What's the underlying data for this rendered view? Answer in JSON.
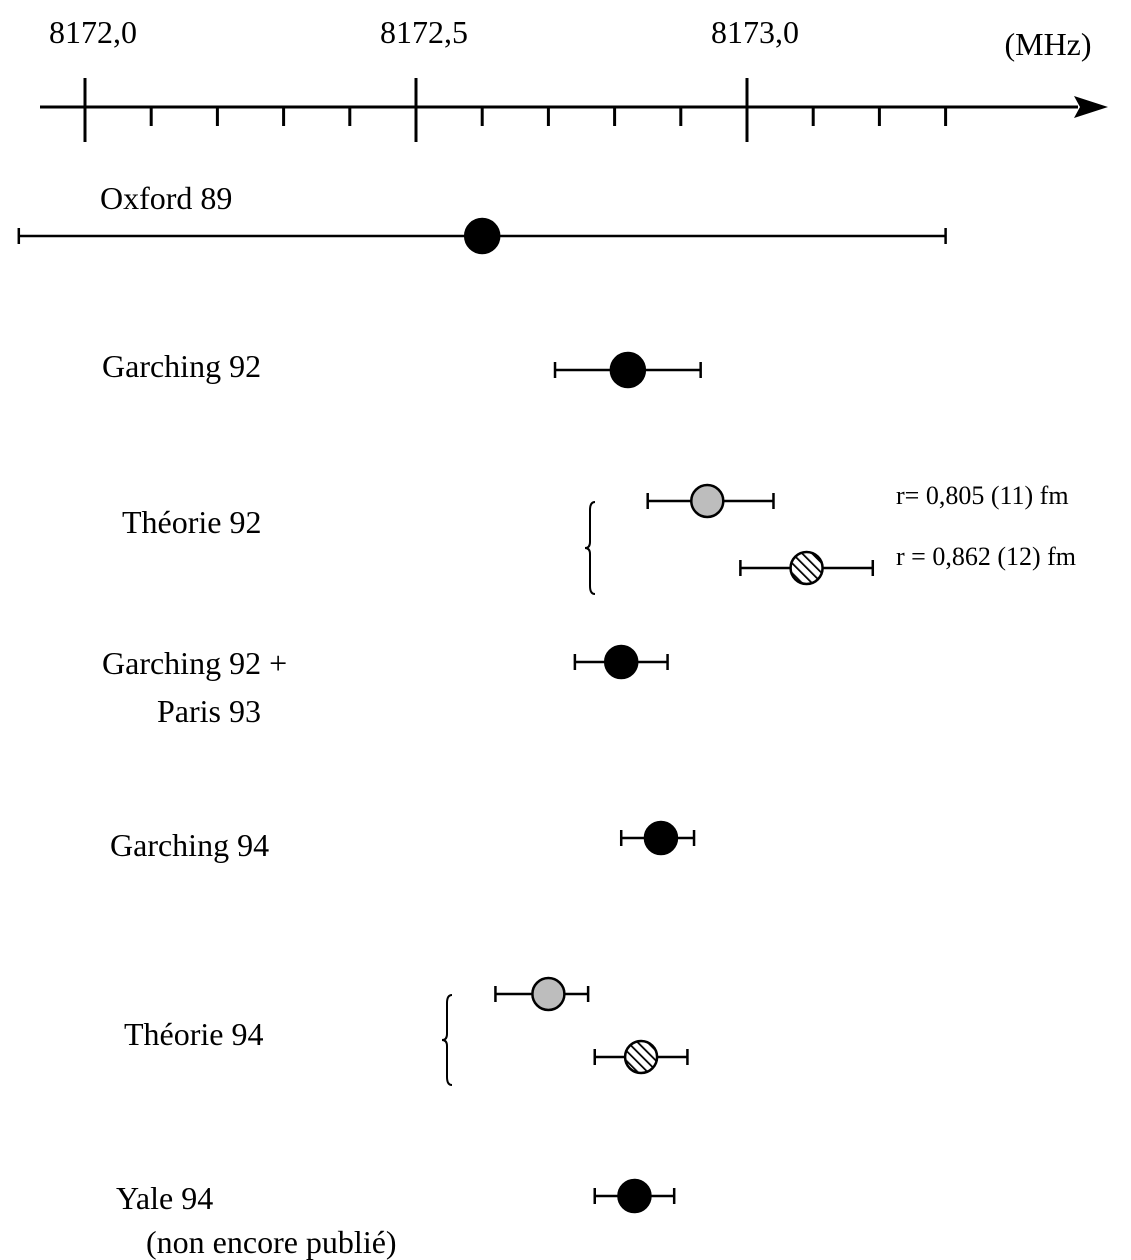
{
  "chart_data": {
    "type": "scatter",
    "title": "",
    "xlabel": "",
    "ylabel": "",
    "unit": "(MHz)",
    "xlim": [
      8171.9,
      8173.5
    ],
    "x_tick_labels": [
      "8172,0",
      "8172,5",
      "8173,0"
    ],
    "x_major_ticks": [
      8172.0,
      8172.5,
      8173.0
    ],
    "x_minor_ticks": [
      8172.1,
      8172.2,
      8172.3,
      8172.4,
      8172.6,
      8172.7,
      8172.8,
      8172.9,
      8173.1,
      8173.2,
      8173.3
    ],
    "legend": "none",
    "grid": false,
    "marker_fills": {
      "measurement": "#000000",
      "theory_a": "#bdbdbd",
      "theory_b": "hatched"
    },
    "rows": [
      {
        "label": [
          "Oxford 89"
        ],
        "points": [
          {
            "x": 8172.6,
            "xmin": 8171.9,
            "xmax": 8173.3,
            "marker": "measurement",
            "size": "large"
          }
        ]
      },
      {
        "label": [
          "Garching 92"
        ],
        "points": [
          {
            "x": 8172.82,
            "xmin": 8172.71,
            "xmax": 8172.93,
            "marker": "measurement",
            "size": "large"
          }
        ]
      },
      {
        "label": [
          "Théorie 92"
        ],
        "group": true,
        "points": [
          {
            "x": 8172.94,
            "xmin": 8172.85,
            "xmax": 8173.04,
            "marker": "theory_a",
            "size": "medium",
            "note": "r= 0,805 (11) fm"
          },
          {
            "x": 8173.09,
            "xmin": 8172.99,
            "xmax": 8173.19,
            "marker": "theory_b",
            "size": "medium",
            "note": "r = 0,862 (12) fm"
          }
        ]
      },
      {
        "label": [
          "Garching 92 +",
          "Paris 93"
        ],
        "points": [
          {
            "x": 8172.81,
            "xmin": 8172.74,
            "xmax": 8172.88,
            "marker": "measurement",
            "size": "medium"
          }
        ]
      },
      {
        "label": [
          "Garching 94"
        ],
        "points": [
          {
            "x": 8172.87,
            "xmin": 8172.81,
            "xmax": 8172.92,
            "marker": "measurement",
            "size": "medium"
          }
        ]
      },
      {
        "label": [
          "Théorie 94"
        ],
        "group": true,
        "points": [
          {
            "x": 8172.7,
            "xmin": 8172.62,
            "xmax": 8172.76,
            "marker": "theory_a",
            "size": "medium"
          },
          {
            "x": 8172.84,
            "xmin": 8172.77,
            "xmax": 8172.91,
            "marker": "theory_b",
            "size": "medium"
          }
        ]
      },
      {
        "label": [
          "Yale 94",
          "(non encore publié)"
        ],
        "points": [
          {
            "x": 8172.83,
            "xmin": 8172.77,
            "xmax": 8172.89,
            "marker": "measurement",
            "size": "medium"
          }
        ]
      }
    ]
  }
}
